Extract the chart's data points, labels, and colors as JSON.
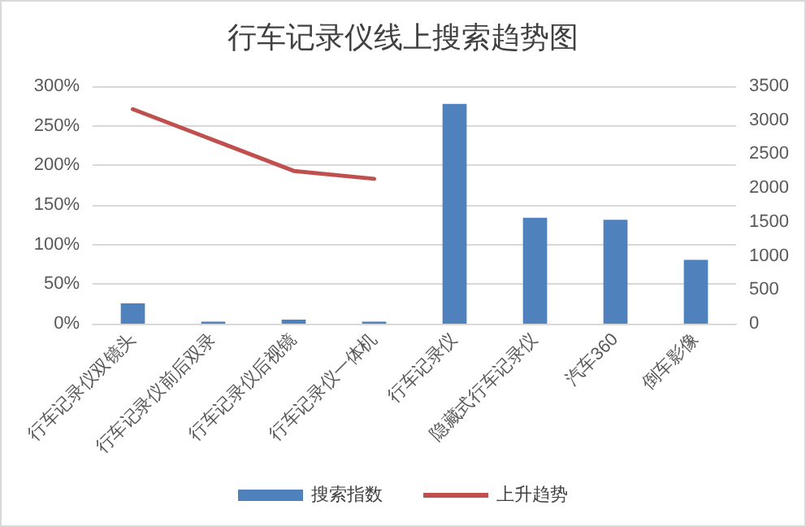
{
  "chart_data": {
    "type": "bar",
    "title": "行车记录仪线上搜索趋势图",
    "categories": [
      "行车记录仪双镜头",
      "行车记录仪前后双录",
      "行车记录仪后视镜",
      "行车记录仪一体机",
      "行车记录仪",
      "隐藏式行车记录仪",
      "汽车360",
      "倒车影像"
    ],
    "series": [
      {
        "name": "搜索指数",
        "axis": "y2",
        "color": "#4f81bd",
        "values": [
          300,
          30,
          60,
          30,
          3240,
          1560,
          1530,
          940
        ]
      },
      {
        "name": "上升趋势",
        "type": "line",
        "color": "#c0504d",
        "values": [
          271,
          232,
          193,
          183,
          null,
          null,
          null,
          null
        ]
      }
    ],
    "ylim": [
      0,
      300
    ],
    "yticks": [
      {
        "value": 0,
        "label": "0%"
      },
      {
        "value": 50,
        "label": "50%"
      },
      {
        "value": 100,
        "label": "100%"
      },
      {
        "value": 150,
        "label": "150%"
      },
      {
        "value": 200,
        "label": "200%"
      },
      {
        "value": 250,
        "label": "250%"
      },
      {
        "value": 300,
        "label": "300%"
      }
    ],
    "y2lim": [
      0,
      3500
    ],
    "y2ticks": [
      0,
      500,
      1000,
      1500,
      2000,
      2500,
      3000,
      3500
    ],
    "grid": "y",
    "legend": "bottom",
    "marker": "none",
    "line_style": "solid"
  }
}
